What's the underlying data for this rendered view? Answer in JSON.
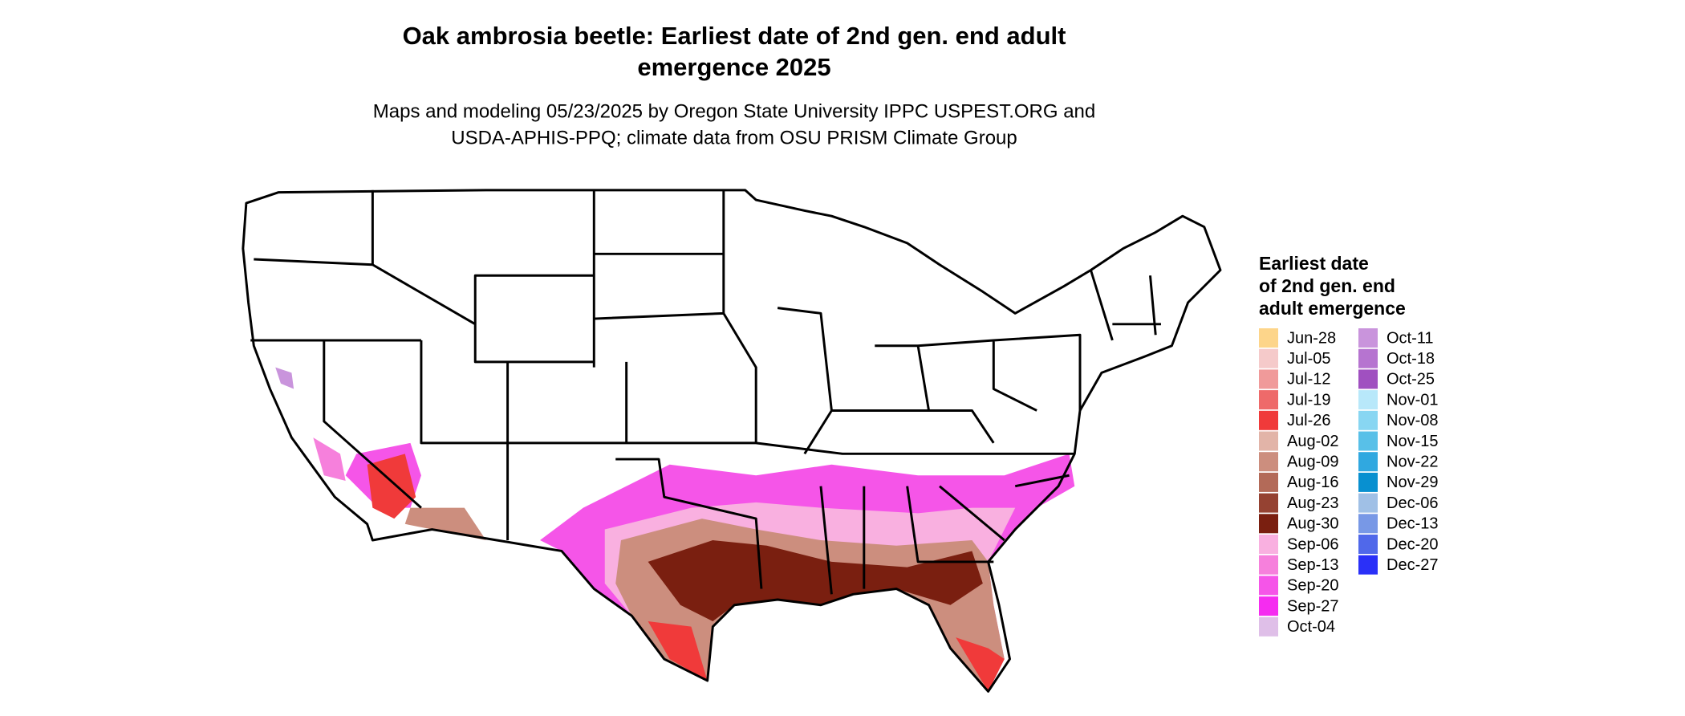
{
  "header": {
    "title": [
      "Oak ambrosia beetle: Earliest date of 2nd gen. end adult",
      "emergence 2025"
    ],
    "subtitle": [
      "Maps and modeling 05/23/2025 by Oregon State University IPPC USPEST.ORG and",
      "USDA-APHIS-PPQ; climate data from OSU PRISM Climate Group"
    ]
  },
  "legend": {
    "title": [
      "Earliest date",
      "of 2nd gen. end",
      "adult emergence"
    ],
    "items": [
      {
        "label": "Jun-28",
        "color": "#fdd58a"
      },
      {
        "label": "Jul-05",
        "color": "#f5caca"
      },
      {
        "label": "Jul-12",
        "color": "#f09a9a"
      },
      {
        "label": "Jul-19",
        "color": "#ee6a6a"
      },
      {
        "label": "Jul-26",
        "color": "#f03a3a"
      },
      {
        "label": "Aug-02",
        "color": "#e2b4a8"
      },
      {
        "label": "Aug-09",
        "color": "#cc8e7e"
      },
      {
        "label": "Aug-16",
        "color": "#b36a58"
      },
      {
        "label": "Aug-23",
        "color": "#954232"
      },
      {
        "label": "Aug-30",
        "color": "#7a1f10"
      },
      {
        "label": "Sep-06",
        "color": "#f9b0e0"
      },
      {
        "label": "Sep-13",
        "color": "#f680dc"
      },
      {
        "label": "Sep-20",
        "color": "#f555e8"
      },
      {
        "label": "Sep-27",
        "color": "#f52cf0"
      },
      {
        "label": "Oct-04",
        "color": "#dfbfe8"
      },
      {
        "label": "Oct-11",
        "color": "#c994dc"
      },
      {
        "label": "Oct-18",
        "color": "#b674d0"
      },
      {
        "label": "Oct-25",
        "color": "#a050c0"
      },
      {
        "label": "Nov-01",
        "color": "#b8e8fa"
      },
      {
        "label": "Nov-08",
        "color": "#88d6f2"
      },
      {
        "label": "Nov-15",
        "color": "#58c0e8"
      },
      {
        "label": "Nov-22",
        "color": "#30a8e0"
      },
      {
        "label": "Nov-29",
        "color": "#0890d0"
      },
      {
        "label": "Dec-06",
        "color": "#a0c0e6"
      },
      {
        "label": "Dec-13",
        "color": "#7898e6"
      },
      {
        "label": "Dec-20",
        "color": "#5068ea"
      },
      {
        "label": "Dec-27",
        "color": "#2a30f8"
      }
    ]
  }
}
